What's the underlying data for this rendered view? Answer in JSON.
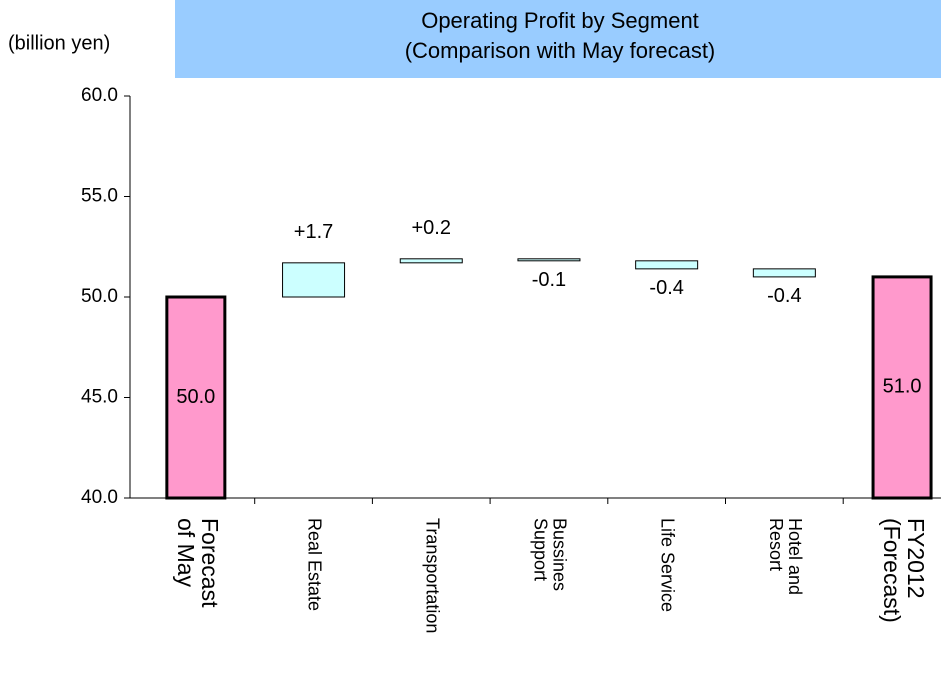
{
  "chart_data": {
    "type": "waterfall",
    "title": [
      "Operating Profit by Segment",
      "(Comparison with May forecast)"
    ],
    "y_axis_label": "(billion yen)",
    "categories": [
      [
        "Forecast",
        "of May"
      ],
      [
        "Real Estate"
      ],
      [
        "Transportation"
      ],
      [
        "Bussines",
        "Support"
      ],
      [
        "Life Service"
      ],
      [
        "Hotel and",
        "Resort"
      ],
      [
        "FY2012",
        "(Forecast)"
      ]
    ],
    "point_types": [
      "total",
      "delta",
      "delta",
      "delta",
      "delta",
      "delta",
      "total"
    ],
    "values": [
      50.0,
      1.7,
      0.2,
      -0.1,
      -0.4,
      -0.4,
      51.0
    ],
    "value_labels": [
      "50.0",
      "+1.7",
      "+0.2",
      "-0.1",
      "-0.4",
      "-0.4",
      "51.0"
    ],
    "colors": {
      "total": "#ff99cc",
      "delta": "#ccffff"
    },
    "ylim": [
      40,
      60
    ],
    "yticks": [
      {
        "value": 40,
        "label": "40.0"
      },
      {
        "value": 45,
        "label": "45.0"
      },
      {
        "value": 50,
        "label": "50.0"
      },
      {
        "value": 55,
        "label": "55.0"
      },
      {
        "value": 60,
        "label": "60.0"
      }
    ],
    "grid": false
  }
}
